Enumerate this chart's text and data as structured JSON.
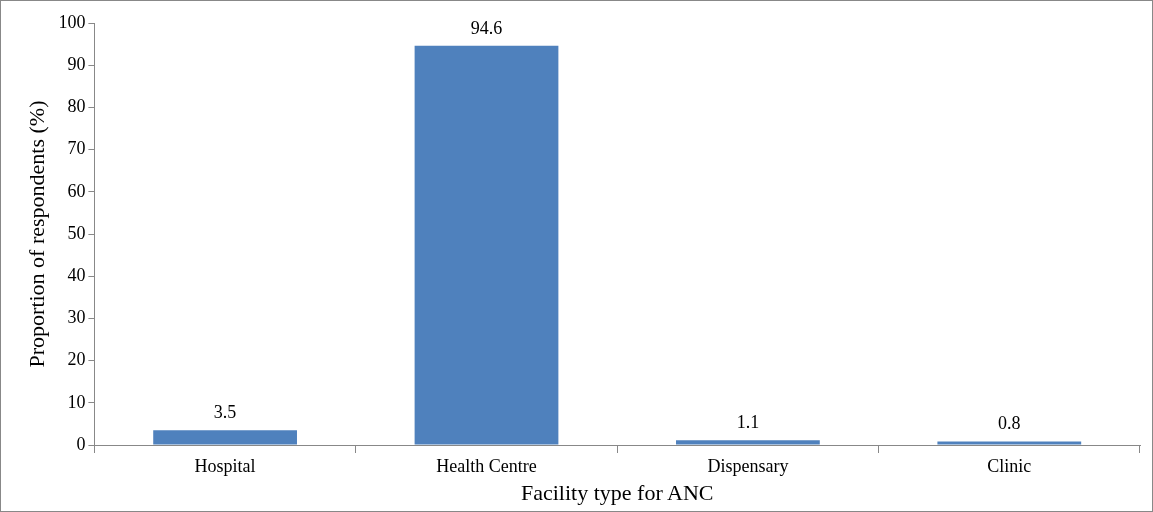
{
  "chart_data": {
    "type": "bar",
    "xlabel": "Facility type for ANC",
    "ylabel": "Proportion of respondents (%)",
    "categories": [
      "Hospital",
      "Health Centre",
      "Dispensary",
      "Clinic"
    ],
    "values": [
      3.5,
      94.6,
      1.1,
      0.8
    ],
    "color": "#4f81bd",
    "ylim": [
      0,
      100
    ],
    "yticks": [
      0,
      10,
      20,
      30,
      40,
      50,
      60,
      70,
      80,
      90,
      100
    ],
    "grid": false,
    "legend": false,
    "data_labels": true
  }
}
